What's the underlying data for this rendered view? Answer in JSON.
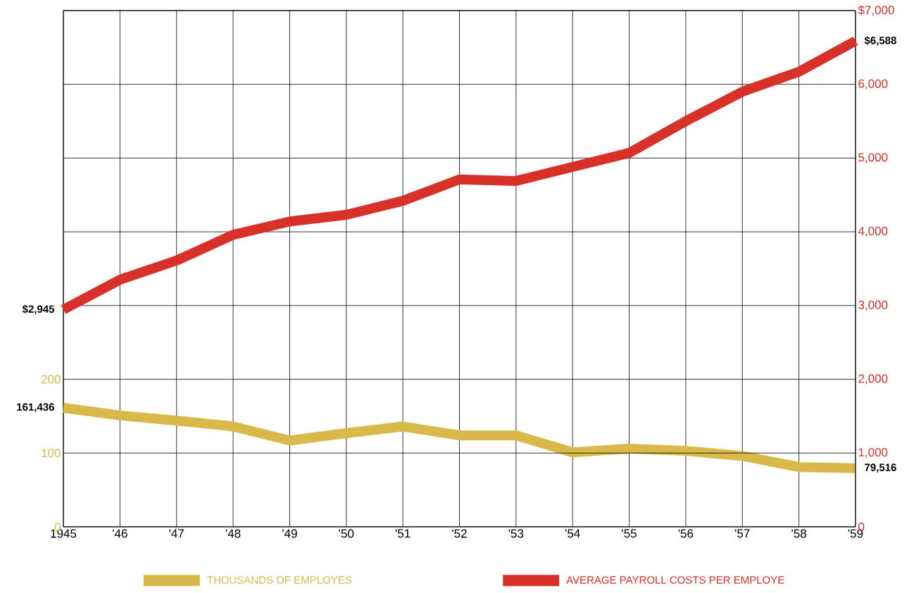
{
  "chart_data": {
    "type": "line",
    "categories": [
      "1945",
      "'46",
      "'47",
      "'48",
      "'49",
      "'50",
      "'51",
      "'52",
      "'53",
      "'54",
      "'55",
      "'56",
      "'57",
      "'58",
      "'59"
    ],
    "series": [
      {
        "name": "THOUSANDS OF EMPLOYES",
        "color": "#d9b94a",
        "axis": "y",
        "values": [
          161.436,
          151,
          144,
          136,
          117,
          127,
          136,
          124,
          124,
          101,
          106,
          103,
          96,
          81,
          79.516
        ]
      },
      {
        "name": "AVERAGE PAYROLL COSTS PER EMPLOYE",
        "color": "#d8312a",
        "axis": "y2",
        "values": [
          2945,
          3350,
          3610,
          3960,
          4140,
          4230,
          4420,
          4710,
          4690,
          4880,
          5070,
          5500,
          5900,
          6170,
          6588
        ],
        "value_labels": [
          "$2,945",
          null,
          null,
          null,
          null,
          null,
          null,
          null,
          null,
          null,
          null,
          null,
          null,
          null,
          "$6,588"
        ]
      }
    ],
    "ylim": [
      0,
      700
    ],
    "yticks": [
      0,
      100,
      200
    ],
    "y2lim": [
      0,
      7000
    ],
    "y2ticks": [
      0,
      {
        "value": 1000,
        "label": "1,000"
      },
      {
        "value": 2000,
        "label": "2,000"
      },
      {
        "value": 3000,
        "label": "3,000"
      },
      {
        "value": 4000,
        "label": "4,000"
      },
      {
        "value": 5000,
        "label": "5,000"
      },
      {
        "value": 6000,
        "label": "6,000"
      },
      {
        "value": 7000,
        "label": "$7,000"
      }
    ],
    "annotations": [
      {
        "text": "161,436",
        "x": "1945",
        "y": 161.436
      },
      {
        "text": "79,516",
        "x": "'59",
        "y": 79.516
      }
    ],
    "grid": true,
    "legend": "bottom",
    "marker": "none",
    "line_style": "solid"
  }
}
